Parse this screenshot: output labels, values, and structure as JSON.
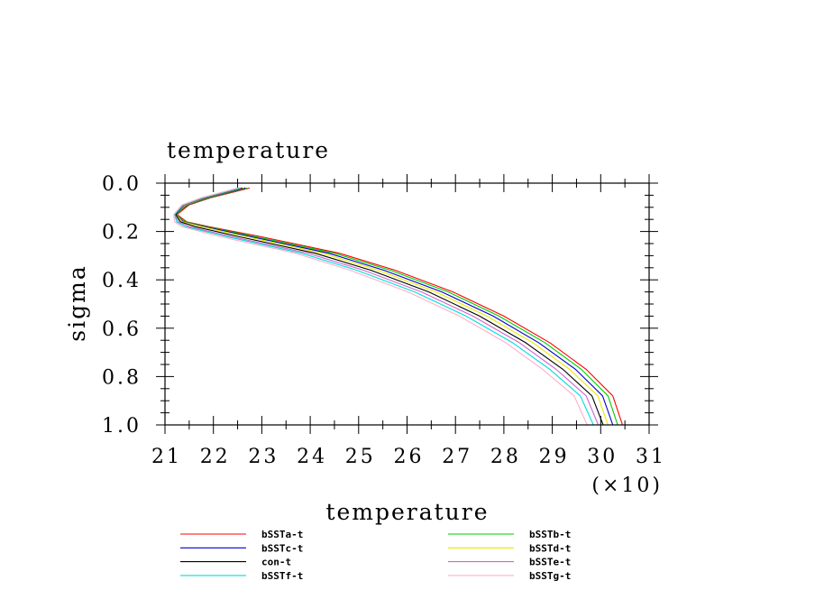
{
  "chart_data": {
    "type": "line",
    "title": "temperature",
    "xlabel": "temperature",
    "ylabel": "sigma",
    "x_multiplier_label": "(×10)",
    "xlim": [
      21,
      31
    ],
    "ylim": [
      0.0,
      1.0
    ],
    "y_reversed": true,
    "xticks": [
      "21",
      "22",
      "23",
      "24",
      "25",
      "26",
      "27",
      "28",
      "29",
      "30",
      "31"
    ],
    "yticks": [
      "0.0",
      "0.2",
      "0.4",
      "0.6",
      "0.8",
      "1.0"
    ],
    "grid": false,
    "legend_placement": "bottom",
    "series": [
      {
        "name": "bSSTa-t",
        "color": "#ff0000",
        "x": [
          22.75,
          21.95,
          21.5,
          21.25,
          21.45,
          21.9,
          22.95,
          24.6,
          25.75,
          26.95,
          28.0,
          28.95,
          29.7,
          30.25,
          30.45
        ],
        "y": [
          0.02,
          0.06,
          0.09,
          0.13,
          0.16,
          0.18,
          0.22,
          0.29,
          0.36,
          0.45,
          0.55,
          0.66,
          0.77,
          0.88,
          1.0
        ]
      },
      {
        "name": "bSSTb-t",
        "color": "#00cc00",
        "x": [
          22.7,
          21.92,
          21.47,
          21.23,
          21.42,
          21.85,
          22.85,
          24.5,
          25.65,
          26.85,
          27.9,
          28.85,
          29.6,
          30.15,
          30.35
        ],
        "y": [
          0.02,
          0.06,
          0.09,
          0.13,
          0.16,
          0.18,
          0.22,
          0.29,
          0.36,
          0.45,
          0.55,
          0.66,
          0.77,
          0.88,
          1.0
        ]
      },
      {
        "name": "bSSTc-t",
        "color": "#0000cc",
        "x": [
          22.66,
          21.88,
          21.45,
          21.22,
          21.38,
          21.8,
          22.75,
          24.38,
          25.52,
          26.72,
          27.78,
          28.72,
          29.48,
          30.04,
          30.25
        ],
        "y": [
          0.02,
          0.06,
          0.09,
          0.13,
          0.16,
          0.18,
          0.22,
          0.29,
          0.36,
          0.45,
          0.55,
          0.66,
          0.77,
          0.88,
          1.0
        ]
      },
      {
        "name": "bSSTd-t",
        "color": "#e8e800",
        "x": [
          22.62,
          21.85,
          21.43,
          21.22,
          21.36,
          21.75,
          22.65,
          24.25,
          25.4,
          26.6,
          27.65,
          28.6,
          29.36,
          29.94,
          30.15
        ],
        "y": [
          0.02,
          0.06,
          0.09,
          0.13,
          0.16,
          0.18,
          0.22,
          0.29,
          0.36,
          0.45,
          0.55,
          0.66,
          0.77,
          0.88,
          1.0
        ]
      },
      {
        "name": "con-t",
        "color": "#000000",
        "x": [
          22.6,
          21.82,
          21.4,
          21.22,
          21.32,
          21.62,
          22.5,
          24.1,
          25.25,
          26.45,
          27.5,
          28.45,
          29.22,
          29.82,
          30.05
        ],
        "y": [
          0.02,
          0.06,
          0.09,
          0.13,
          0.16,
          0.18,
          0.22,
          0.29,
          0.36,
          0.45,
          0.55,
          0.66,
          0.77,
          0.88,
          1.0
        ]
      },
      {
        "name": "bSSTe-t",
        "color": "#cc66cc",
        "x": [
          22.57,
          21.8,
          21.39,
          21.2,
          21.28,
          21.5,
          22.35,
          23.95,
          25.1,
          26.3,
          27.36,
          28.32,
          29.08,
          29.7,
          29.95
        ],
        "y": [
          0.02,
          0.06,
          0.09,
          0.13,
          0.16,
          0.18,
          0.22,
          0.29,
          0.36,
          0.45,
          0.55,
          0.66,
          0.77,
          0.88,
          1.0
        ]
      },
      {
        "name": "bSSTf-t",
        "color": "#00dddd",
        "x": [
          22.55,
          21.78,
          21.37,
          21.2,
          21.24,
          21.42,
          22.25,
          23.82,
          24.96,
          26.16,
          27.22,
          28.18,
          28.95,
          29.58,
          29.85
        ],
        "y": [
          0.02,
          0.06,
          0.09,
          0.13,
          0.16,
          0.18,
          0.22,
          0.29,
          0.36,
          0.45,
          0.55,
          0.66,
          0.77,
          0.88,
          1.0
        ]
      },
      {
        "name": "bSSTg-t",
        "color": "#ffb0c8",
        "x": [
          22.5,
          21.75,
          21.35,
          21.18,
          21.2,
          21.35,
          22.12,
          23.7,
          24.82,
          26.02,
          27.08,
          28.04,
          28.8,
          29.45,
          29.72
        ],
        "y": [
          0.02,
          0.06,
          0.09,
          0.13,
          0.16,
          0.18,
          0.22,
          0.29,
          0.36,
          0.45,
          0.55,
          0.66,
          0.77,
          0.88,
          1.0
        ]
      }
    ]
  }
}
